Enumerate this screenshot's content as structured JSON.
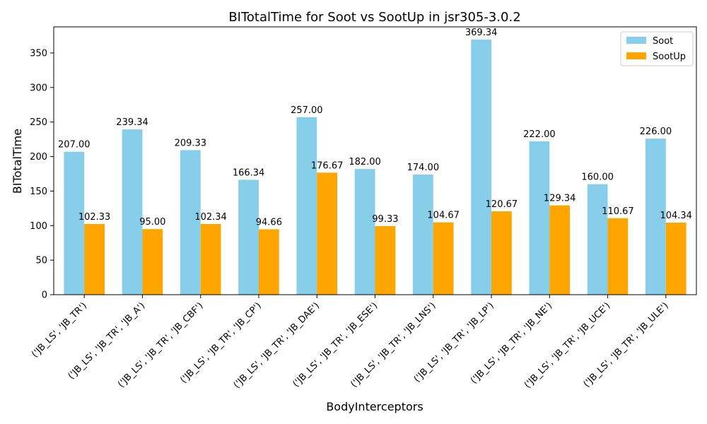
{
  "chart_data": {
    "type": "bar",
    "title": "BITotalTime for Soot vs SootUp in jsr305-3.0.2",
    "xlabel": "BodyInterceptors",
    "ylabel": "BITotalTime",
    "ylim": [
      0,
      387.8
    ],
    "yticks": [
      0,
      50,
      100,
      150,
      200,
      250,
      300,
      350
    ],
    "grid": false,
    "legend_position": "top-right",
    "categories": [
      "('JB_LS', 'JB_TR')",
      "('JB_LS', 'JB_TR', 'JB_A')",
      "('JB_LS', 'JB_TR', 'JB_CBF')",
      "('JB_LS', 'JB_TR', 'JB_CP')",
      "('JB_LS', 'JB_TR', 'JB_DAE')",
      "('JB_LS', 'JB_TR', 'JB_ESE')",
      "('JB_LS', 'JB_TR', 'JB_LNS')",
      "('JB_LS', 'JB_TR', 'JB_LP')",
      "('JB_LS', 'JB_TR', 'JB_NE')",
      "('JB_LS', 'JB_TR', 'JB_UCE')",
      "('JB_LS', 'JB_TR', 'JB_ULE')"
    ],
    "series": [
      {
        "name": "Soot",
        "color": "#87ceeb",
        "values": [
          207.0,
          239.34,
          209.33,
          166.34,
          257.0,
          182.0,
          174.0,
          369.34,
          222.0,
          160.0,
          226.0
        ],
        "labels": [
          "207.00",
          "239.34",
          "209.33",
          "166.34",
          "257.00",
          "182.00",
          "174.00",
          "369.34",
          "222.00",
          "160.00",
          "226.00"
        ]
      },
      {
        "name": "SootUp",
        "color": "#ffa500",
        "values": [
          102.33,
          95.0,
          102.34,
          94.66,
          176.67,
          99.33,
          104.67,
          120.67,
          129.34,
          110.67,
          104.34
        ],
        "labels": [
          "102.33",
          "95.00",
          "102.34",
          "94.66",
          "176.67",
          "99.33",
          "104.67",
          "120.67",
          "129.34",
          "110.67",
          "104.34"
        ]
      }
    ]
  }
}
